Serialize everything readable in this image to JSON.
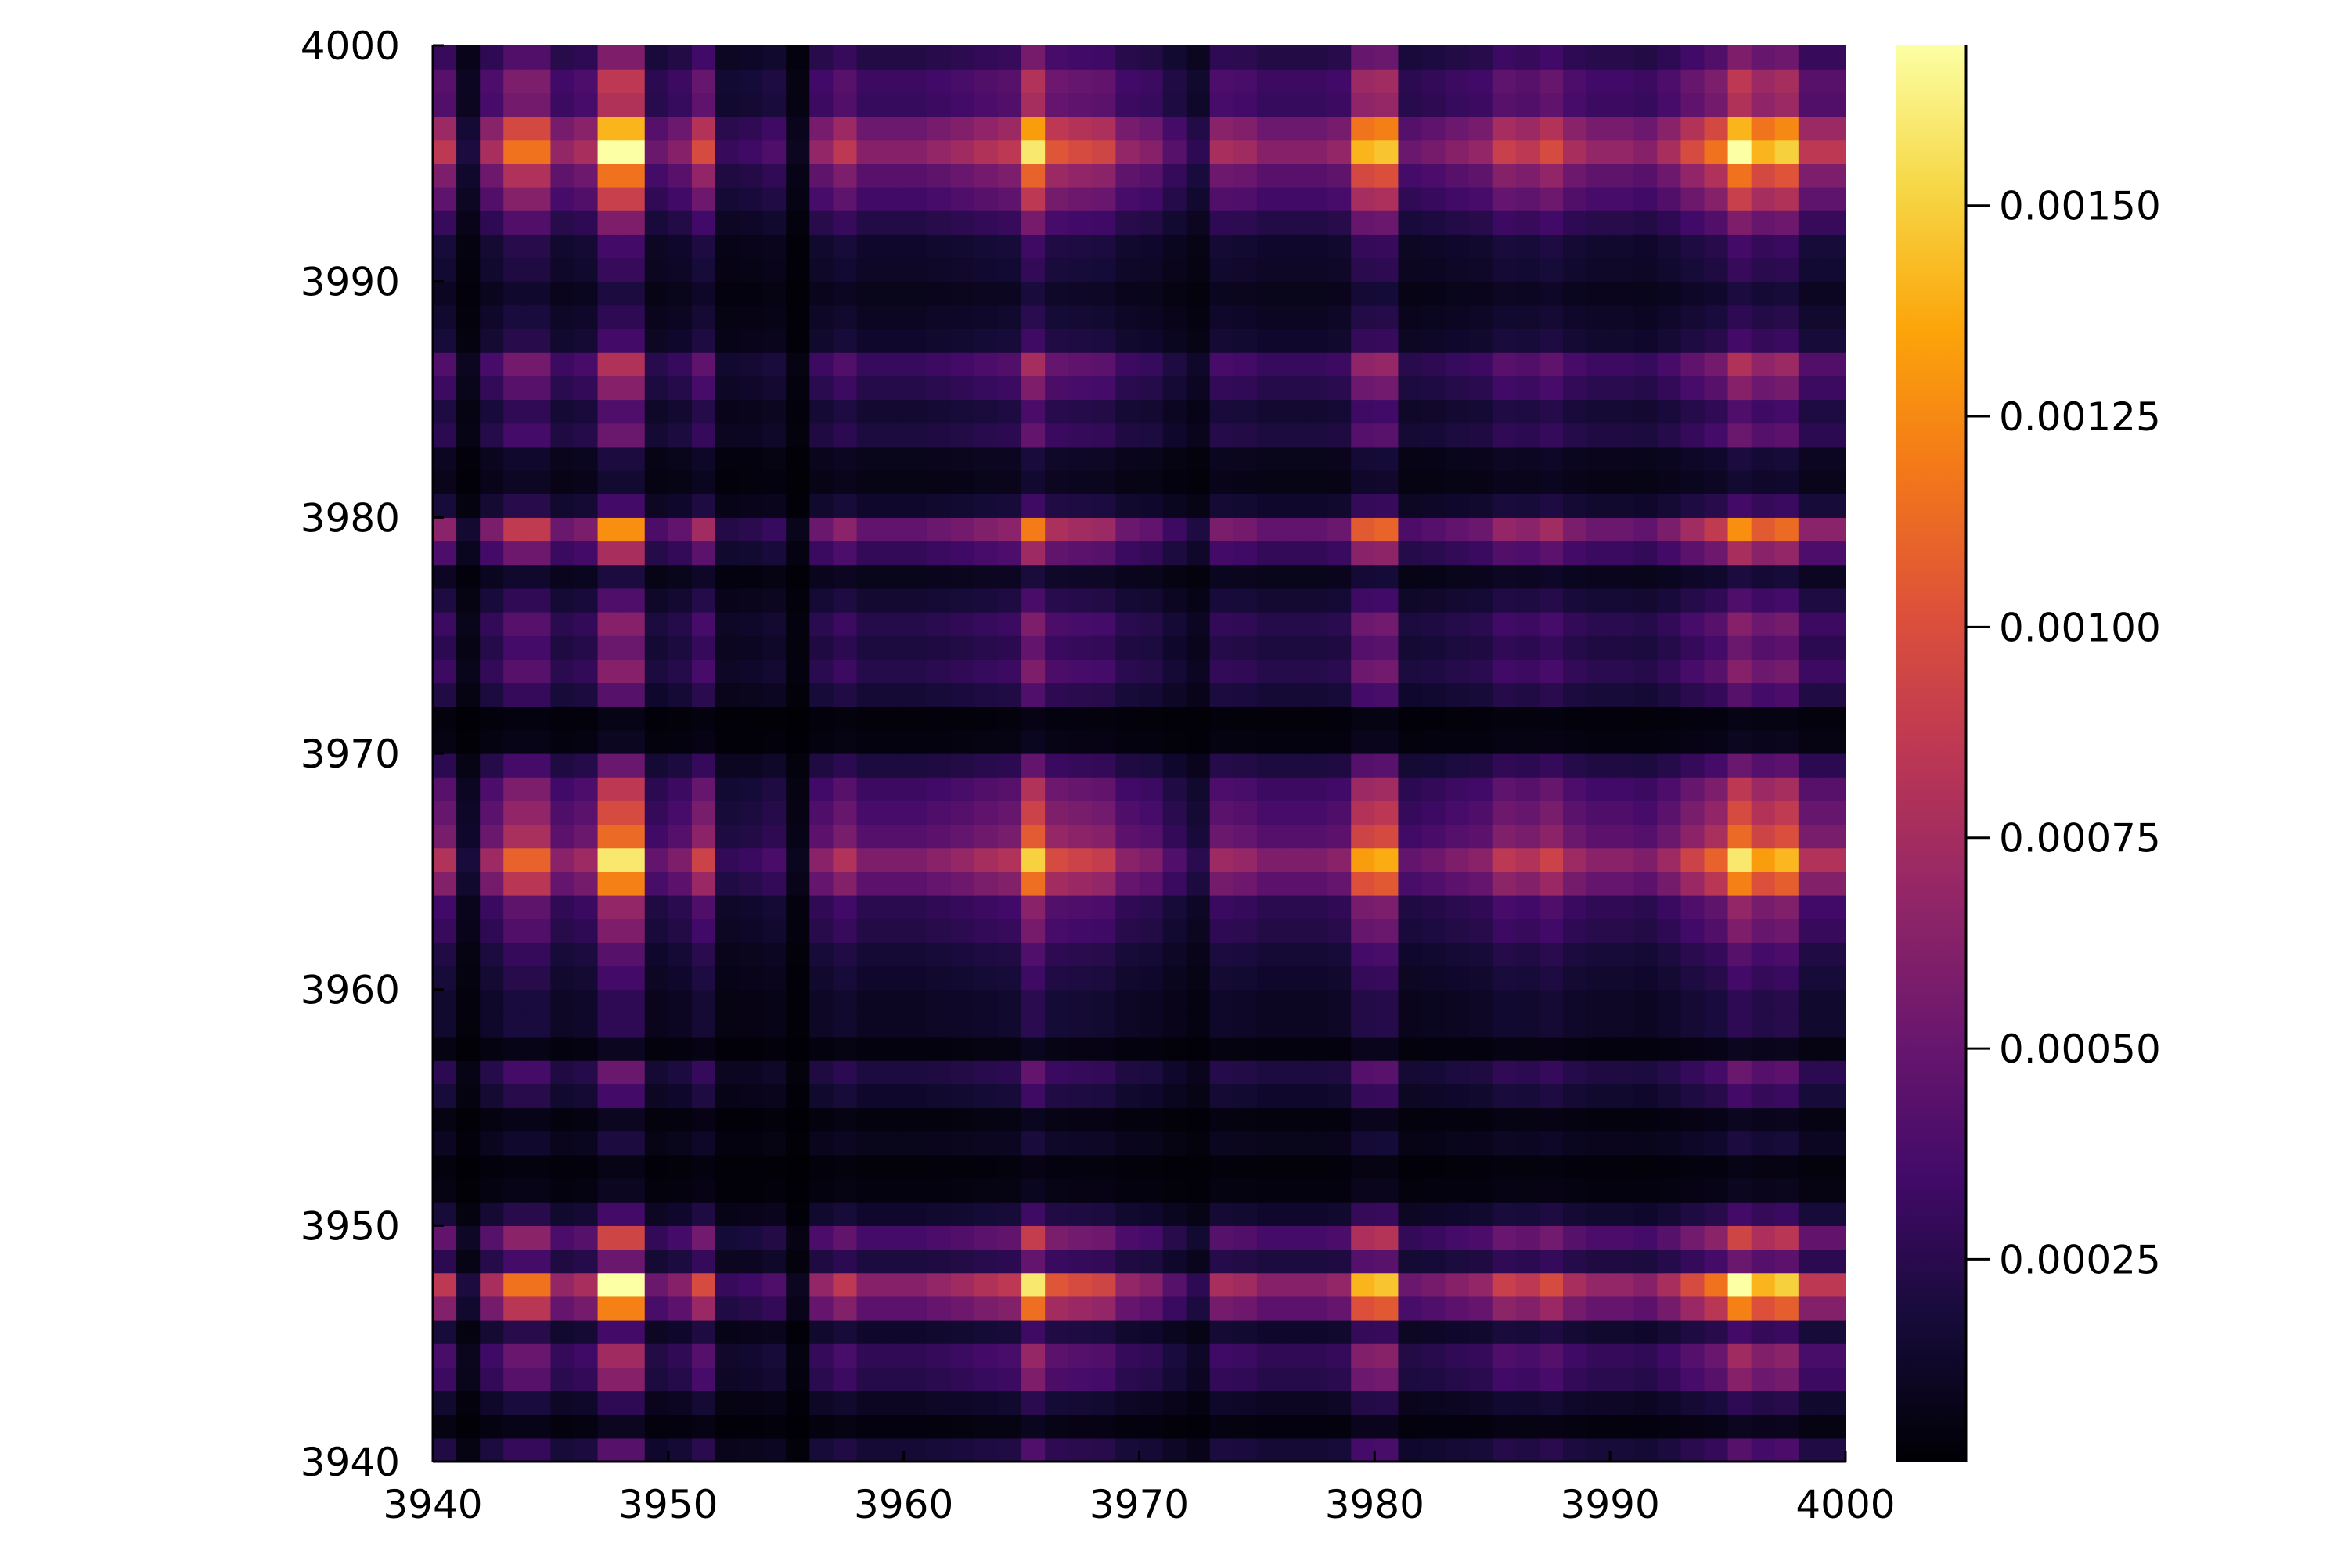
{
  "chart_data": {
    "type": "heatmap",
    "title": "",
    "xlabel": "",
    "ylabel": "",
    "xlim": [
      3940,
      4000
    ],
    "ylim": [
      3940,
      4000
    ],
    "x_ticks": [
      3940,
      3950,
      3960,
      3970,
      3980,
      3990,
      4000
    ],
    "y_ticks": [
      3940,
      3950,
      3960,
      3970,
      3980,
      3990,
      4000
    ],
    "colormap": "inferno",
    "color_range": [
      1e-05,
      0.00169
    ],
    "colorbar_ticks": [
      {
        "value": 0.00025,
        "label": "0.00025"
      },
      {
        "value": 0.0005,
        "label": "0.00050"
      },
      {
        "value": 0.00075,
        "label": "0.00075"
      },
      {
        "value": 0.001,
        "label": "0.00100"
      },
      {
        "value": 0.00125,
        "label": "0.00125"
      },
      {
        "value": 0.0015,
        "label": "0.00150"
      }
    ],
    "cells_per_axis": 60,
    "column_weights": {
      "3940": 0.55,
      "3941": 0.15,
      "3942": 0.5,
      "3943": 0.72,
      "3944": 0.72,
      "3945": 0.45,
      "3946": 0.5,
      "3947": 1.0,
      "3948": 1.0,
      "3949": 0.35,
      "3950": 0.42,
      "3951": 0.62,
      "3952": 0.22,
      "3953": 0.24,
      "3954": 0.28,
      "3955": 0.08,
      "3956": 0.45,
      "3957": 0.55,
      "3958": 0.42,
      "3959": 0.42,
      "3960": 0.42,
      "3961": 0.45,
      "3962": 0.48,
      "3963": 0.52,
      "3964": 0.55,
      "3965": 0.95,
      "3966": 0.65,
      "3967": 0.62,
      "3968": 0.6,
      "3969": 0.45,
      "3970": 0.42,
      "3971": 0.3,
      "3972": 0.2,
      "3973": 0.5,
      "3974": 0.48,
      "3975": 0.42,
      "3976": 0.42,
      "3977": 0.42,
      "3978": 0.45,
      "3979": 0.85,
      "3980": 0.88,
      "3981": 0.35,
      "3982": 0.38,
      "3983": 0.42,
      "3984": 0.45,
      "3985": 0.58,
      "3986": 0.55,
      "3987": 0.62,
      "3988": 0.5,
      "3989": 0.45,
      "3990": 0.45,
      "3991": 0.42,
      "3992": 0.5,
      "3993": 0.62,
      "3994": 0.72,
      "3995": 1.0,
      "3996": 0.85,
      "3997": 0.9,
      "3998": 0.55,
      "3999": 0.55
    },
    "row_weights": {
      "3940": 0.3,
      "3941": 0.08,
      "3942": 0.2,
      "3943": 0.42,
      "3944": 0.48,
      "3945": 0.25,
      "3946": 0.75,
      "3947": 1.0,
      "3948": 0.35,
      "3949": 0.6,
      "3950": 0.25,
      "3951": 0.08,
      "3952": 0.05,
      "3953": 0.15,
      "3954": 0.08,
      "3955": 0.25,
      "3956": 0.35,
      "3957": 0.08,
      "3958": 0.2,
      "3959": 0.2,
      "3960": 0.25,
      "3961": 0.3,
      "3962": 0.4,
      "3963": 0.45,
      "3964": 0.75,
      "3965": 0.95,
      "3966": 0.7,
      "3967": 0.62,
      "3968": 0.55,
      "3969": 0.35,
      "3970": 0.08,
      "3971": 0.05,
      "3972": 0.3,
      "3973": 0.42,
      "3974": 0.35,
      "3975": 0.42,
      "3976": 0.28,
      "3977": 0.15,
      "3978": 0.5,
      "3979": 0.78,
      "3980": 0.25,
      "3981": 0.12,
      "3982": 0.15,
      "3983": 0.35,
      "3984": 0.28,
      "3985": 0.42,
      "3986": 0.52,
      "3987": 0.25,
      "3988": 0.2,
      "3989": 0.15,
      "3990": 0.22,
      "3991": 0.25,
      "3992": 0.4,
      "3993": 0.58,
      "3994": 0.72,
      "3995": 1.0,
      "3996": 0.85,
      "3997": 0.52,
      "3998": 0.55,
      "3999": 0.4
    },
    "grid": false,
    "legend": "none",
    "colorbar_position": "right"
  }
}
